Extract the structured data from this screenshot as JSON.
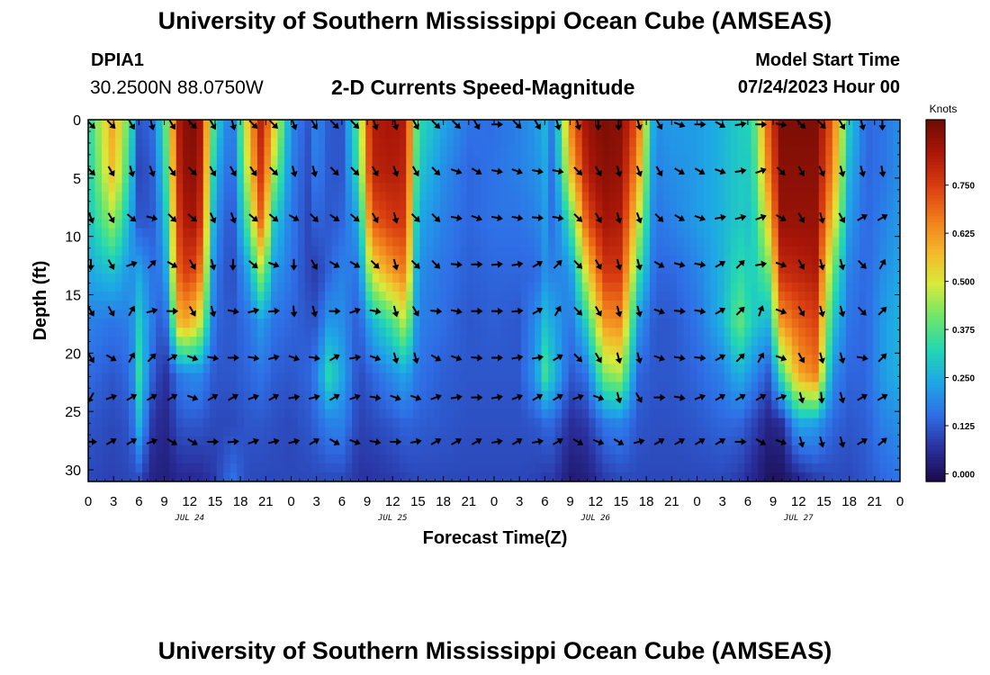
{
  "header": {
    "title": "University of Southern Mississippi Ocean Cube (AMSEAS)",
    "station_id": "DPIA1",
    "coordinates": "30.2500N  88.0750W",
    "plot_title": "2-D Currents Speed-Magnitude",
    "model_start_label": "Model Start Time",
    "model_start_value": "07/24/2023 Hour 00"
  },
  "footer": {
    "title": "University of Southern Mississippi Ocean Cube (AMSEAS)"
  },
  "chart_data": {
    "type": "heatmap",
    "title": "2-D Currents Speed-Magnitude",
    "xlabel": "Forecast Time(Z)",
    "ylabel": "Depth (ft)",
    "x_range_hours": [
      0,
      96
    ],
    "ylim": [
      31,
      0
    ],
    "x_ticks_hours": [
      0,
      3,
      6,
      9,
      12,
      15,
      18,
      21,
      24,
      27,
      30,
      33,
      36,
      39,
      42,
      45,
      48,
      51,
      54,
      57,
      60,
      63,
      66,
      69,
      72,
      75,
      78,
      81,
      84,
      87,
      90,
      93,
      96
    ],
    "x_tick_labels": [
      "0",
      "3",
      "6",
      "9",
      "12",
      "15",
      "18",
      "21",
      "0",
      "3",
      "6",
      "9",
      "12",
      "15",
      "18",
      "21",
      "0",
      "3",
      "6",
      "9",
      "12",
      "15",
      "18",
      "21",
      "0",
      "3",
      "6",
      "9",
      "12",
      "15",
      "18",
      "21",
      "0"
    ],
    "date_labels": [
      {
        "hour": 12,
        "label": "JUL 24"
      },
      {
        "hour": 36,
        "label": "JUL 25"
      },
      {
        "hour": 60,
        "label": "JUL 26"
      },
      {
        "hour": 84,
        "label": "JUL 27"
      }
    ],
    "y_ticks": [
      0,
      5,
      10,
      15,
      20,
      25,
      30
    ],
    "colorbar": {
      "label": "Knots",
      "min": -0.02,
      "max": 0.92,
      "ticks": [
        0.0,
        0.125,
        0.25,
        0.375,
        0.5,
        0.625,
        0.75
      ],
      "tick_labels": [
        "0.000",
        "0.125",
        "0.250",
        "0.375",
        "0.500",
        "0.625",
        "0.750"
      ],
      "colors": [
        "#1a0a4a",
        "#2a2f9c",
        "#2f6ee6",
        "#1ea6e6",
        "#22d7b4",
        "#6ee66a",
        "#d8ea3a",
        "#f4b62a",
        "#f07a1a",
        "#d83c10",
        "#a81608",
        "#6e0c05"
      ]
    },
    "speed_profiles": [
      {
        "hour": 0,
        "values": [
          0.32,
          0.3,
          0.28,
          0.24,
          0.18,
          0.15,
          0.12,
          0.1
        ]
      },
      {
        "hour": 3,
        "values": [
          0.62,
          0.58,
          0.45,
          0.28,
          0.16,
          0.12,
          0.1,
          0.09
        ]
      },
      {
        "hour": 5,
        "values": [
          0.35,
          0.3,
          0.24,
          0.2,
          0.18,
          0.15,
          0.12,
          0.1
        ]
      },
      {
        "hour": 6,
        "values": [
          0.12,
          0.1,
          0.12,
          0.24,
          0.3,
          0.34,
          0.26,
          0.1
        ]
      },
      {
        "hour": 7.5,
        "values": [
          0.14,
          0.12,
          0.12,
          0.16,
          0.18,
          0.14,
          0.08,
          0.04
        ]
      },
      {
        "hour": 9,
        "values": [
          0.35,
          0.3,
          0.24,
          0.18,
          0.1,
          0.06,
          0.04,
          0.03
        ]
      },
      {
        "hour": 11,
        "values": [
          0.88,
          0.86,
          0.82,
          0.76,
          0.62,
          0.18,
          0.12,
          0.05
        ]
      },
      {
        "hour": 13,
        "values": [
          0.9,
          0.88,
          0.84,
          0.72,
          0.52,
          0.2,
          0.12,
          0.05
        ]
      },
      {
        "hour": 15,
        "values": [
          0.32,
          0.26,
          0.2,
          0.16,
          0.14,
          0.12,
          0.1,
          0.08
        ]
      },
      {
        "hour": 17,
        "values": [
          0.14,
          0.12,
          0.1,
          0.1,
          0.12,
          0.12,
          0.1,
          0.16
        ]
      },
      {
        "hour": 19,
        "values": [
          0.58,
          0.52,
          0.4,
          0.24,
          0.16,
          0.14,
          0.12,
          0.1
        ]
      },
      {
        "hour": 20.5,
        "values": [
          0.82,
          0.78,
          0.7,
          0.45,
          0.22,
          0.16,
          0.12,
          0.1
        ]
      },
      {
        "hour": 22,
        "values": [
          0.55,
          0.45,
          0.3,
          0.22,
          0.16,
          0.13,
          0.11,
          0.1
        ]
      },
      {
        "hour": 24,
        "values": [
          0.2,
          0.18,
          0.17,
          0.16,
          0.14,
          0.12,
          0.1,
          0.1
        ]
      },
      {
        "hour": 26,
        "values": [
          0.12,
          0.11,
          0.1,
          0.1,
          0.12,
          0.14,
          0.12,
          0.1
        ]
      },
      {
        "hour": 27,
        "values": [
          0.2,
          0.18,
          0.14,
          0.08,
          0.12,
          0.18,
          0.14,
          0.1
        ]
      },
      {
        "hour": 28.5,
        "values": [
          0.12,
          0.12,
          0.12,
          0.14,
          0.22,
          0.34,
          0.18,
          0.1
        ]
      },
      {
        "hour": 30,
        "values": [
          0.12,
          0.12,
          0.14,
          0.18,
          0.2,
          0.24,
          0.18,
          0.1
        ]
      },
      {
        "hour": 32,
        "values": [
          0.4,
          0.35,
          0.24,
          0.16,
          0.12,
          0.1,
          0.09,
          0.07
        ]
      },
      {
        "hour": 33.5,
        "values": [
          0.82,
          0.8,
          0.7,
          0.5,
          0.26,
          0.14,
          0.1,
          0.07
        ]
      },
      {
        "hour": 36,
        "values": [
          0.84,
          0.82,
          0.76,
          0.62,
          0.36,
          0.2,
          0.12,
          0.08
        ]
      },
      {
        "hour": 37.5,
        "values": [
          0.82,
          0.8,
          0.76,
          0.66,
          0.48,
          0.24,
          0.14,
          0.09
        ]
      },
      {
        "hour": 39,
        "values": [
          0.34,
          0.3,
          0.24,
          0.2,
          0.18,
          0.16,
          0.13,
          0.1
        ]
      },
      {
        "hour": 42,
        "values": [
          0.24,
          0.2,
          0.18,
          0.16,
          0.15,
          0.13,
          0.12,
          0.1
        ]
      },
      {
        "hour": 45,
        "values": [
          0.16,
          0.14,
          0.14,
          0.13,
          0.12,
          0.12,
          0.11,
          0.1
        ]
      },
      {
        "hour": 48,
        "values": [
          0.15,
          0.16,
          0.16,
          0.14,
          0.13,
          0.12,
          0.11,
          0.1
        ]
      },
      {
        "hour": 51,
        "values": [
          0.18,
          0.18,
          0.16,
          0.14,
          0.12,
          0.12,
          0.11,
          0.1
        ]
      },
      {
        "hour": 53,
        "values": [
          0.22,
          0.2,
          0.18,
          0.14,
          0.2,
          0.22,
          0.12,
          0.09
        ]
      },
      {
        "hour": 54,
        "values": [
          0.26,
          0.24,
          0.22,
          0.2,
          0.28,
          0.36,
          0.14,
          0.08
        ]
      },
      {
        "hour": 55,
        "values": [
          0.16,
          0.14,
          0.14,
          0.18,
          0.24,
          0.28,
          0.14,
          0.08
        ]
      },
      {
        "hour": 57,
        "values": [
          0.65,
          0.55,
          0.35,
          0.2,
          0.16,
          0.12,
          0.06,
          0.02
        ]
      },
      {
        "hour": 59,
        "values": [
          0.86,
          0.82,
          0.72,
          0.52,
          0.32,
          0.16,
          0.08,
          0.03
        ]
      },
      {
        "hour": 61,
        "values": [
          0.9,
          0.88,
          0.84,
          0.76,
          0.62,
          0.42,
          0.16,
          0.08
        ]
      },
      {
        "hour": 63,
        "values": [
          0.88,
          0.86,
          0.82,
          0.76,
          0.64,
          0.46,
          0.18,
          0.1
        ]
      },
      {
        "hour": 65,
        "values": [
          0.7,
          0.62,
          0.5,
          0.36,
          0.22,
          0.14,
          0.12,
          0.1
        ]
      },
      {
        "hour": 67,
        "values": [
          0.2,
          0.18,
          0.16,
          0.14,
          0.12,
          0.12,
          0.11,
          0.1
        ]
      },
      {
        "hour": 69,
        "values": [
          0.22,
          0.2,
          0.18,
          0.14,
          0.12,
          0.12,
          0.11,
          0.1
        ]
      },
      {
        "hour": 72,
        "values": [
          0.22,
          0.22,
          0.22,
          0.18,
          0.16,
          0.14,
          0.12,
          0.1
        ]
      },
      {
        "hour": 75,
        "values": [
          0.26,
          0.26,
          0.26,
          0.26,
          0.26,
          0.18,
          0.14,
          0.1
        ]
      },
      {
        "hour": 77,
        "values": [
          0.3,
          0.3,
          0.3,
          0.34,
          0.4,
          0.26,
          0.14,
          0.08
        ]
      },
      {
        "hour": 78.5,
        "values": [
          0.32,
          0.3,
          0.28,
          0.3,
          0.3,
          0.2,
          0.1,
          0.05
        ]
      },
      {
        "hour": 80.5,
        "values": [
          0.72,
          0.66,
          0.55,
          0.4,
          0.26,
          0.12,
          0.04,
          0.0
        ]
      },
      {
        "hour": 82,
        "values": [
          0.9,
          0.88,
          0.86,
          0.78,
          0.62,
          0.36,
          0.06,
          0.0
        ]
      },
      {
        "hour": 84,
        "values": [
          0.9,
          0.88,
          0.86,
          0.8,
          0.7,
          0.6,
          0.24,
          0.04
        ]
      },
      {
        "hour": 86,
        "values": [
          0.9,
          0.88,
          0.86,
          0.82,
          0.74,
          0.66,
          0.22,
          0.08
        ]
      },
      {
        "hour": 88,
        "values": [
          0.7,
          0.65,
          0.55,
          0.4,
          0.3,
          0.2,
          0.14,
          0.1
        ]
      },
      {
        "hour": 90,
        "values": [
          0.3,
          0.26,
          0.22,
          0.18,
          0.16,
          0.14,
          0.12,
          0.1
        ]
      },
      {
        "hour": 92,
        "values": [
          0.14,
          0.14,
          0.14,
          0.14,
          0.14,
          0.14,
          0.13,
          0.12
        ]
      },
      {
        "hour": 94,
        "values": [
          0.16,
          0.16,
          0.18,
          0.2,
          0.22,
          0.22,
          0.18,
          0.14
        ]
      },
      {
        "hour": 96,
        "values": [
          0.2,
          0.2,
          0.22,
          0.24,
          0.26,
          0.26,
          0.2,
          0.16
        ]
      }
    ],
    "profile_depths": [
      0,
      4.4,
      8.7,
      13.1,
      17.4,
      21.8,
      26.1,
      31
    ],
    "vector_depths": [
      0.4,
      4.4,
      8.4,
      12.4,
      16.4,
      20.4,
      23.8,
      27.6
    ],
    "vector_hours": [
      0,
      2.4,
      4.8,
      7.2,
      9.6,
      12,
      14.4,
      16.8,
      19.2,
      21.6,
      24,
      26.4,
      28.8,
      31.2,
      33.6,
      36,
      38.4,
      40.8,
      43.2,
      45.6,
      48,
      50.4,
      52.8,
      55.2,
      57.6,
      60,
      62.4,
      64.8,
      67.2,
      69.6,
      72,
      74.4,
      76.8,
      79.2,
      81.6,
      84,
      86.4,
      88.8,
      91.2,
      93.6
    ],
    "vector_directions_by_row": [
      [
        135,
        135,
        150,
        165,
        150,
        135,
        150,
        165,
        135,
        135,
        160,
        150,
        135,
        135,
        160,
        165,
        150,
        135,
        135,
        150,
        90,
        135,
        150,
        165,
        165,
        180,
        180,
        165,
        150,
        110,
        90,
        120,
        80,
        90,
        100,
        135,
        135,
        150,
        165,
        180
      ],
      [
        135,
        150,
        165,
        160,
        145,
        135,
        150,
        150,
        145,
        135,
        165,
        165,
        135,
        135,
        150,
        160,
        150,
        135,
        110,
        120,
        100,
        110,
        100,
        100,
        135,
        150,
        165,
        160,
        150,
        120,
        120,
        110,
        80,
        70,
        135,
        150,
        155,
        165,
        165,
        170
      ],
      [
        160,
        150,
        130,
        105,
        135,
        130,
        155,
        160,
        130,
        130,
        120,
        135,
        125,
        130,
        150,
        165,
        135,
        135,
        100,
        110,
        100,
        100,
        95,
        100,
        135,
        150,
        165,
        160,
        135,
        120,
        110,
        80,
        75,
        70,
        120,
        150,
        165,
        150,
        60,
        60
      ],
      [
        180,
        150,
        70,
        45,
        120,
        150,
        165,
        180,
        130,
        110,
        180,
        150,
        120,
        120,
        135,
        165,
        135,
        135,
        95,
        90,
        85,
        80,
        60,
        45,
        135,
        150,
        165,
        165,
        120,
        105,
        100,
        60,
        45,
        80,
        110,
        150,
        165,
        165,
        135,
        30
      ],
      [
        150,
        150,
        30,
        75,
        90,
        150,
        165,
        100,
        75,
        85,
        175,
        165,
        90,
        70,
        100,
        165,
        150,
        95,
        100,
        90,
        90,
        85,
        60,
        30,
        135,
        150,
        165,
        165,
        110,
        95,
        100,
        60,
        45,
        20,
        110,
        150,
        165,
        165,
        135,
        45
      ],
      [
        150,
        120,
        30,
        45,
        60,
        110,
        100,
        90,
        100,
        75,
        110,
        100,
        60,
        80,
        110,
        165,
        165,
        120,
        110,
        95,
        90,
        80,
        80,
        60,
        135,
        150,
        165,
        165,
        110,
        100,
        95,
        60,
        45,
        30,
        110,
        150,
        165,
        165,
        100,
        45
      ],
      [
        210,
        70,
        60,
        60,
        60,
        110,
        60,
        60,
        70,
        60,
        80,
        75,
        60,
        70,
        100,
        110,
        110,
        70,
        80,
        90,
        80,
        70,
        60,
        60,
        70,
        110,
        165,
        150,
        90,
        100,
        70,
        60,
        60,
        60,
        70,
        165,
        175,
        165,
        60,
        60
      ],
      [
        90,
        60,
        60,
        70,
        120,
        120,
        90,
        85,
        70,
        75,
        75,
        60,
        120,
        110,
        100,
        90,
        80,
        60,
        60,
        60,
        80,
        60,
        80,
        60,
        120,
        110,
        120,
        75,
        60,
        60,
        60,
        60,
        90,
        120,
        110,
        165,
        165,
        165,
        60,
        50
      ]
    ]
  }
}
